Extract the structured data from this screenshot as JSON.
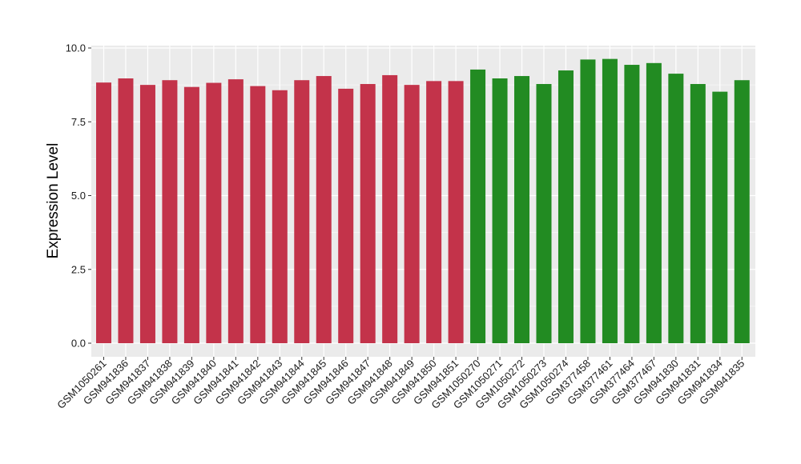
{
  "chart_data": {
    "type": "bar",
    "title": "",
    "xlabel": "",
    "ylabel": "Expression Level",
    "ylim": [
      0,
      10
    ],
    "yticks": [
      0,
      2.5,
      5,
      7.5,
      10
    ],
    "ytick_labels": [
      "0.0",
      "2.5",
      "5.0",
      "7.5",
      "10.0"
    ],
    "grid": true,
    "legend": "none",
    "categories": [
      "GSM1050261",
      "GSM941836",
      "GSM941837",
      "GSM941838",
      "GSM941839",
      "GSM941840",
      "GSM941841",
      "GSM941842",
      "GSM941843",
      "GSM941844",
      "GSM941845",
      "GSM941846",
      "GSM941847",
      "GSM941848",
      "GSM941849",
      "GSM941850",
      "GSM941851",
      "GSM1050270",
      "GSM1050271",
      "GSM1050272",
      "GSM1050273",
      "GSM1050274",
      "GSM377458",
      "GSM377461",
      "GSM377464",
      "GSM377467",
      "GSM941830",
      "GSM941831",
      "GSM941834",
      "GSM941835"
    ],
    "values": [
      8.83,
      8.97,
      8.75,
      8.91,
      8.68,
      8.82,
      8.94,
      8.71,
      8.57,
      8.91,
      9.05,
      8.62,
      8.78,
      9.08,
      8.75,
      8.88,
      8.88,
      9.27,
      8.97,
      9.05,
      8.78,
      9.24,
      9.61,
      9.63,
      9.43,
      9.49,
      9.13,
      8.78,
      8.52,
      8.91
    ],
    "bar_colors": [
      "#C3334A",
      "#C3334A",
      "#C3334A",
      "#C3334A",
      "#C3334A",
      "#C3334A",
      "#C3334A",
      "#C3334A",
      "#C3334A",
      "#C3334A",
      "#C3334A",
      "#C3334A",
      "#C3334A",
      "#C3334A",
      "#C3334A",
      "#C3334A",
      "#C3334A",
      "#228B22",
      "#228B22",
      "#228B22",
      "#228B22",
      "#228B22",
      "#228B22",
      "#228B22",
      "#228B22",
      "#228B22",
      "#228B22",
      "#228B22",
      "#228B22",
      "#228B22"
    ],
    "panel_background": "#EBEBEB",
    "grid_color": "#FFFFFF"
  }
}
